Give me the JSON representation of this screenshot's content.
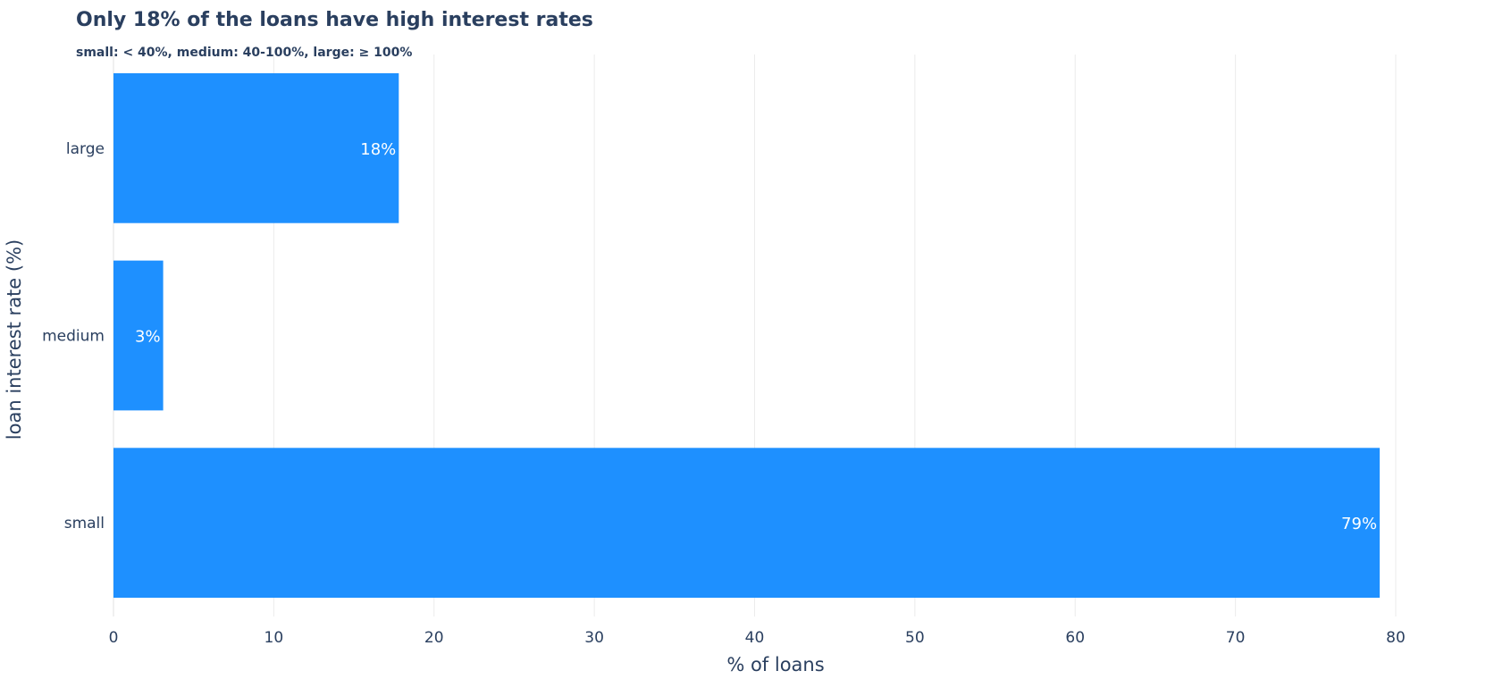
{
  "chart_data": {
    "type": "bar",
    "orientation": "horizontal",
    "title": "Only 18% of the loans have high interest rates",
    "subtitle": "small: < 40%, medium: 40-100%, large: ≥ 100%",
    "xlabel": "% of loans",
    "ylabel": "loan interest rate (%)",
    "categories": [
      "small",
      "medium",
      "large"
    ],
    "values": [
      79,
      3.1,
      17.8
    ],
    "data_labels": [
      "79%",
      "3%",
      "18%"
    ],
    "xlim": [
      0,
      80
    ],
    "x_ticks": [
      0,
      10,
      20,
      30,
      40,
      50,
      60,
      70,
      80
    ],
    "x_tick_labels": [
      "0",
      "10",
      "20",
      "30",
      "40",
      "50",
      "60",
      "70",
      "80"
    ],
    "grid": "vertical",
    "legend": "none",
    "colors": {
      "bar": "#1e90ff",
      "title": "#2a3f5f",
      "axis_text": "#2a3f5f",
      "grid": "#ebebeb",
      "data_label": "#ffffff"
    }
  }
}
